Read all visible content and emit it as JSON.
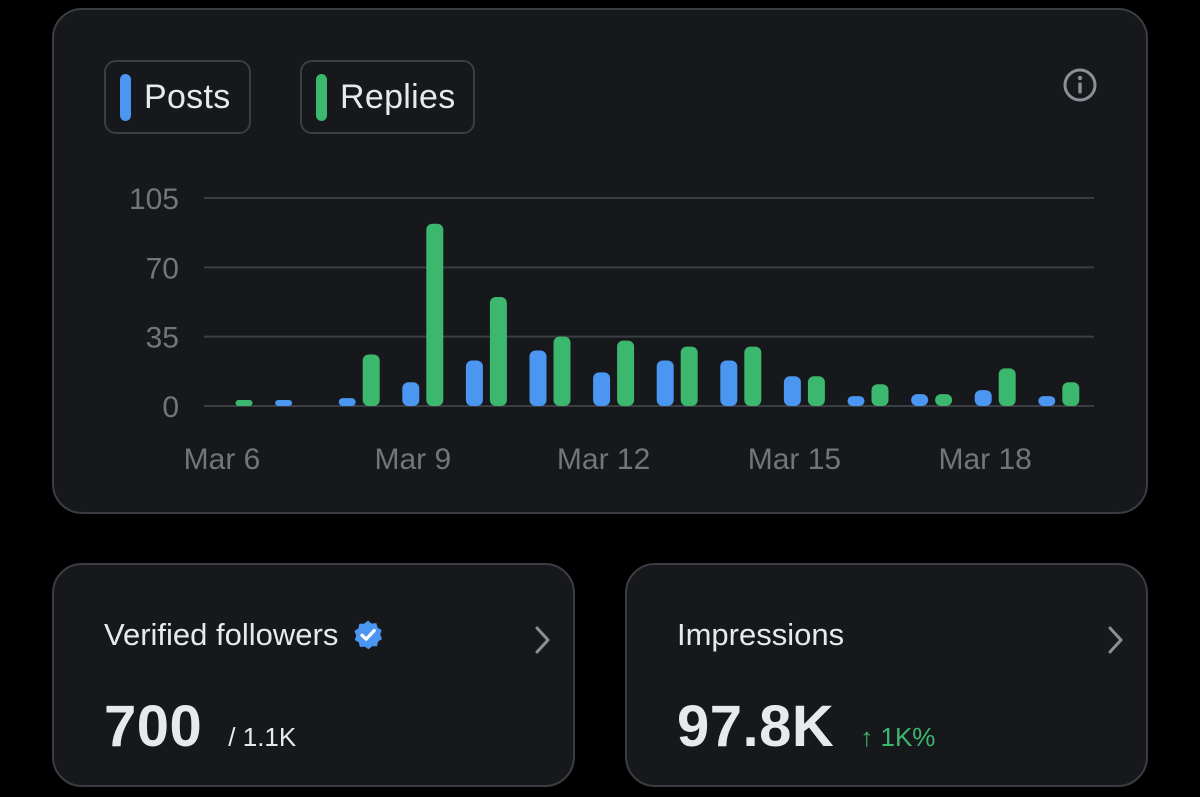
{
  "chart": {
    "legend": [
      {
        "label": "Posts",
        "color": "#4a96f0"
      },
      {
        "label": "Replies",
        "color": "#3bb76e"
      }
    ],
    "info_icon": "info-circle-icon"
  },
  "chart_data": {
    "type": "bar",
    "categories": [
      "Mar 6",
      "Mar 7",
      "Mar 8",
      "Mar 9",
      "Mar 10",
      "Mar 11",
      "Mar 12",
      "Mar 13",
      "Mar 14",
      "Mar 15",
      "Mar 16",
      "Mar 17",
      "Mar 18",
      "Mar 19"
    ],
    "x_tick_labels": [
      "Mar 6",
      "Mar 9",
      "Mar 12",
      "Mar 15",
      "Mar 18"
    ],
    "series": [
      {
        "name": "Posts",
        "color": "#4a96f0",
        "values": [
          0,
          1,
          4,
          12,
          23,
          28,
          17,
          23,
          23,
          15,
          5,
          6,
          8,
          5
        ]
      },
      {
        "name": "Replies",
        "color": "#3bb76e",
        "values": [
          1,
          0,
          26,
          92,
          55,
          35,
          33,
          30,
          30,
          15,
          11,
          6,
          19,
          12
        ]
      }
    ],
    "y_ticks": [
      0,
      35,
      70,
      105
    ],
    "ylim": [
      0,
      105
    ],
    "grid": true
  },
  "followers": {
    "title": "Verified followers",
    "badge_icon": "verified-badge-icon",
    "value": "700",
    "sub": "/ 1.1K",
    "chevron_icon": "chevron-right-icon"
  },
  "impressions": {
    "title": "Impressions",
    "value": "97.8K",
    "change": "↑ 1K%",
    "chevron_icon": "chevron-right-icon"
  }
}
